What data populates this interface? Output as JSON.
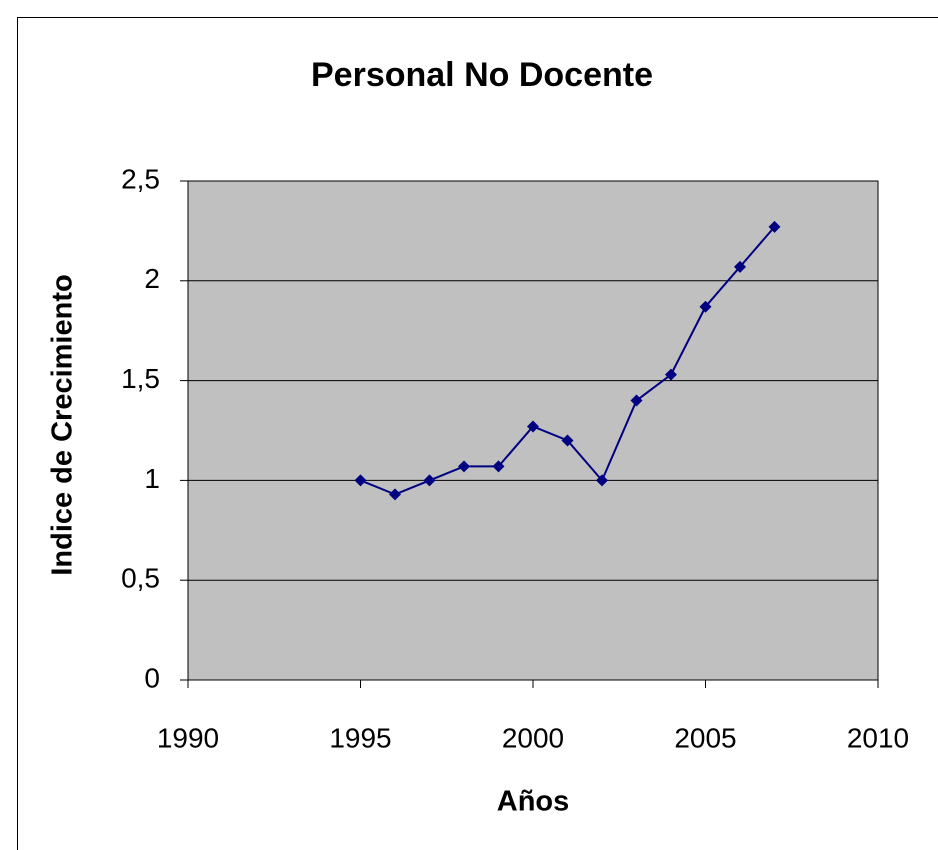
{
  "chart_data": {
    "type": "line",
    "title": "Personal No Docente",
    "x_label": "Años",
    "y_label": "Indice de Crecimiento",
    "x": [
      1995,
      1996,
      1997,
      1998,
      1999,
      2000,
      2001,
      2002,
      2003,
      2004,
      2005,
      2006,
      2007
    ],
    "series": [
      {
        "name": "Personal No Docente",
        "color": "#000080",
        "values": [
          1.0,
          0.93,
          1.0,
          1.07,
          1.07,
          1.27,
          1.2,
          1.0,
          1.4,
          1.53,
          1.87,
          2.07,
          2.27
        ]
      }
    ],
    "xlim": [
      1990,
      2010
    ],
    "xticks": [
      1990,
      1995,
      2000,
      2005,
      2010
    ],
    "ylim": [
      0,
      2.5
    ],
    "yticks": [
      0,
      {
        "value": 0.5,
        "label": "0,5"
      },
      1,
      {
        "value": 1.5,
        "label": "1,5"
      },
      2,
      {
        "value": 2.5,
        "label": "2,5"
      }
    ],
    "grid": true,
    "legend": false
  }
}
